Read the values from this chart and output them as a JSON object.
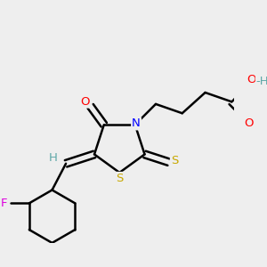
{
  "bg_color": "#eeeeee",
  "atom_colors": {
    "C": "#000000",
    "H": "#5fa8a8",
    "N": "#0000ff",
    "O": "#ff0000",
    "S": "#c8a800",
    "F": "#dd00dd"
  },
  "figsize": [
    3.0,
    3.0
  ],
  "dpi": 100
}
